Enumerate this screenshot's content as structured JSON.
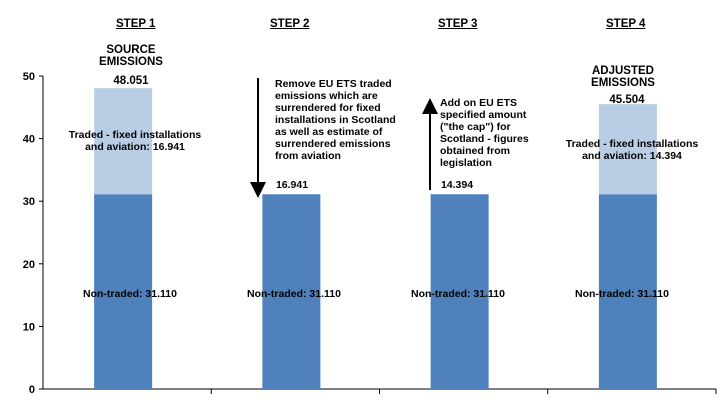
{
  "chart_data": {
    "type": "bar",
    "stacked": true,
    "categories": [
      "STEP 1",
      "STEP 2",
      "STEP 3",
      "STEP 4"
    ],
    "series": [
      {
        "name": "Non-traded",
        "values": [
          31.11,
          31.11,
          31.11,
          31.11
        ],
        "color": "#4F81BD"
      },
      {
        "name": "Traded",
        "values": [
          16.941,
          0,
          0,
          14.394
        ],
        "color": "#B9CDE5"
      }
    ],
    "ylim": [
      0,
      50
    ],
    "yticks": [
      0,
      10,
      20,
      30,
      40,
      50
    ],
    "grid": false,
    "legend": "none",
    "labels": {
      "step1_title": "SOURCE\nEMISSIONS",
      "step1_total": "48.051",
      "step1_traded": "Traded - fixed installations\nand aviation: 16.941",
      "step2_value": "16.941",
      "step2_note": "Remove EU ETS traded\nemissions which are\nsurrendered for  fixed\ninstallations in Scotland\nas well as estimate of\nsurrendered emissions\nfrom aviation",
      "step3_value": "14.394",
      "step3_note": "Add on EU ETS\nspecified amount\n(\"the cap\") for\nScotland - figures\nobtained from\nlegislation",
      "step4_title": "ADJUSTED\nEMISSIONS",
      "step4_total": "45.504",
      "step4_traded": "Traded - fixed installations\nand aviation: 14.394",
      "non_traded": "Non-traded: 31.110"
    }
  }
}
